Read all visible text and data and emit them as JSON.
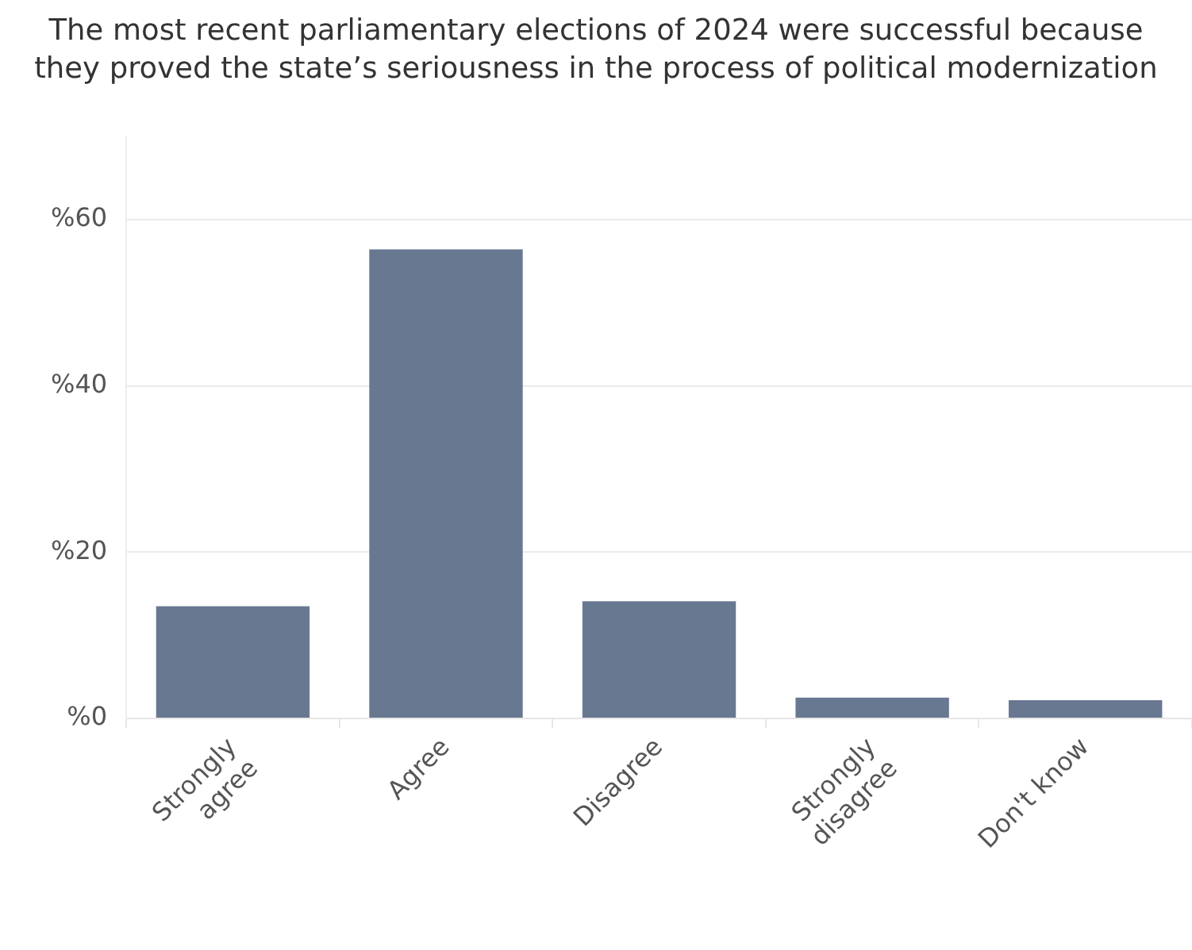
{
  "chart_data": {
    "type": "bar",
    "title": "The most recent parliamentary elections of 2024 were successful because they proved the state’s seriousness in the process of political modernization",
    "categories": [
      "Strongly agree",
      "Agree",
      "Disagree",
      "Strongly disagree",
      "Don't know"
    ],
    "values": [
      13.5,
      56.4,
      14.1,
      2.5,
      2.2
    ],
    "color": "#687891",
    "ylim": [
      0,
      70
    ],
    "yticks": [
      {
        "value": 0,
        "label": "%0"
      },
      {
        "value": 20,
        "label": "%20"
      },
      {
        "value": 40,
        "label": "%40"
      },
      {
        "value": 60,
        "label": "%60"
      }
    ],
    "grid": "y",
    "legend": false
  }
}
